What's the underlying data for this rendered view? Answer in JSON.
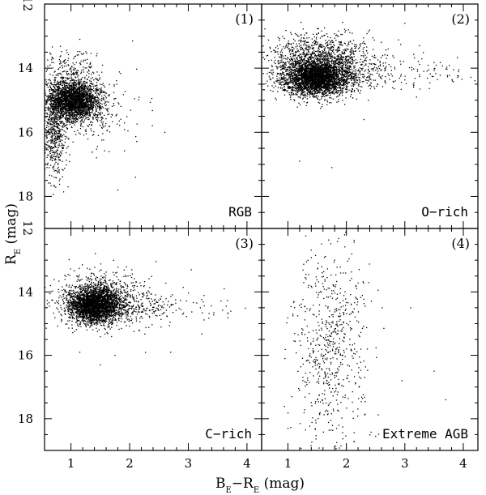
{
  "chart_data": {
    "type": "scatter",
    "layout": "2x2",
    "xlabel": {
      "main": "B",
      "sub1": "E",
      "mid": "−R",
      "sub2": "E",
      "tail": " (mag)"
    },
    "ylabel": {
      "main": "R",
      "sub": "E",
      "tail": " (mag)"
    },
    "xlim": [
      0.55,
      4.25
    ],
    "ylim": [
      19.0,
      12.0
    ],
    "y_inverted": true,
    "x_ticks": [
      1,
      2,
      3,
      4
    ],
    "y_ticks": [
      12,
      14,
      16,
      18
    ],
    "marker_color": "#000000",
    "panels": [
      {
        "tag": "(1)",
        "name": "RGB",
        "tag_position": "top-right",
        "name_position": "bottom-right",
        "y_tick_labels": [
          "14",
          "16",
          "18"
        ],
        "clusters": [
          {
            "x": 1.05,
            "y": 15.0,
            "sx": 0.22,
            "sy": 0.32,
            "n": 2600,
            "xclip": [
              0.55,
              2.4
            ]
          },
          {
            "x": 0.72,
            "y": 15.9,
            "sx": 0.1,
            "sy": 0.75,
            "n": 550,
            "xclip": [
              0.55,
              1.3
            ]
          },
          {
            "x": 1.0,
            "y": 13.9,
            "sx": 0.22,
            "sy": 0.25,
            "n": 120,
            "xclip": [
              0.55,
              2.2
            ]
          },
          {
            "x": 1.35,
            "y": 15.4,
            "sx": 0.45,
            "sy": 0.55,
            "n": 220,
            "xclip": [
              0.55,
              2.6
            ]
          }
        ],
        "outliers": [
          [
            2.05,
            13.15
          ],
          [
            1.15,
            13.1
          ],
          [
            1.65,
            16.6
          ],
          [
            2.6,
            16.0
          ],
          [
            0.95,
            17.7
          ],
          [
            1.8,
            17.8
          ],
          [
            2.1,
            17.4
          ]
        ]
      },
      {
        "tag": "(2)",
        "name": "O−rich",
        "tag_position": "top-right",
        "name_position": "bottom-right",
        "y_tick_labels": [],
        "clusters": [
          {
            "x": 1.5,
            "y": 14.3,
            "sx": 0.3,
            "sy": 0.28,
            "n": 3400,
            "xclip": [
              0.55,
              2.8
            ]
          },
          {
            "x": 1.55,
            "y": 13.6,
            "sx": 0.45,
            "sy": 0.35,
            "n": 900,
            "xclip": [
              0.55,
              3.0
            ]
          },
          {
            "x": 2.4,
            "y": 14.2,
            "sx": 0.35,
            "sy": 0.25,
            "n": 160,
            "xclip": [
              1.8,
              3.4
            ]
          },
          {
            "x": 3.4,
            "y": 14.2,
            "sx": 0.45,
            "sy": 0.28,
            "n": 70,
            "xclip": [
              2.8,
              4.2
            ]
          }
        ],
        "outliers": [
          [
            1.2,
            16.9
          ],
          [
            1.75,
            17.1
          ],
          [
            3.0,
            12.6
          ],
          [
            3.25,
            13.3
          ],
          [
            2.3,
            15.6
          ],
          [
            3.2,
            14.9
          ]
        ]
      },
      {
        "tag": "(3)",
        "name": "C−rich",
        "tag_position": "top-right",
        "name_position": "bottom-right",
        "y_tick_labels": [
          "14",
          "16",
          "18"
        ],
        "clusters": [
          {
            "x": 1.4,
            "y": 14.4,
            "sx": 0.22,
            "sy": 0.28,
            "n": 2800,
            "xclip": [
              0.55,
              2.6
            ]
          },
          {
            "x": 1.55,
            "y": 14.2,
            "sx": 0.4,
            "sy": 0.45,
            "n": 700,
            "xclip": [
              0.55,
              2.9
            ]
          },
          {
            "x": 2.3,
            "y": 14.5,
            "sx": 0.3,
            "sy": 0.25,
            "n": 150,
            "xclip": [
              1.8,
              3.0
            ]
          },
          {
            "x": 3.2,
            "y": 14.5,
            "sx": 0.4,
            "sy": 0.25,
            "n": 45,
            "xclip": [
              2.7,
              4.0
            ]
          }
        ],
        "outliers": [
          [
            3.05,
            13.3
          ],
          [
            1.5,
            16.3
          ],
          [
            1.75,
            16.0
          ],
          [
            2.7,
            15.9
          ],
          [
            1.15,
            15.9
          ]
        ]
      },
      {
        "tag": "(4)",
        "name": "Extreme AGB",
        "tag_position": "top-right",
        "name_position": "bottom-right",
        "y_tick_labels": [],
        "clusters": [
          {
            "x": 1.75,
            "y": 15.8,
            "sx": 0.33,
            "sy": 1.5,
            "n": 650,
            "xclip": [
              0.9,
              2.75
            ]
          }
        ],
        "outliers": [
          [
            1.8,
            13.0
          ],
          [
            3.1,
            14.5
          ],
          [
            2.95,
            16.8
          ],
          [
            3.5,
            16.5
          ],
          [
            3.7,
            17.4
          ],
          [
            1.0,
            18.3
          ]
        ]
      }
    ],
    "seed": 7
  }
}
